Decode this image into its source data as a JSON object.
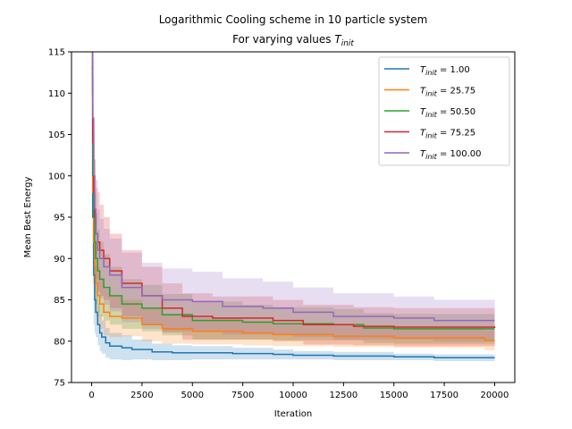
{
  "chart_data": {
    "type": "line",
    "title": "Logarithmic Cooling scheme in 10 particle system",
    "subtitle_prefix": "For varying values ",
    "subtitle_symbol": "T",
    "subtitle_subscript": "init",
    "xlabel": "Iteration",
    "ylabel": "Mean Best Energy",
    "xlim": [
      -1000,
      21000
    ],
    "ylim": [
      75,
      115
    ],
    "xticks": [
      0,
      2500,
      5000,
      7500,
      10000,
      12500,
      15000,
      17500,
      20000
    ],
    "xtick_labels": [
      "0",
      "2500",
      "5000",
      "7500",
      "10000",
      "12500",
      "15000",
      "17500",
      "20000"
    ],
    "yticks": [
      75,
      80,
      85,
      90,
      95,
      100,
      105,
      110,
      115
    ],
    "ytick_labels": [
      "75",
      "80",
      "85",
      "90",
      "95",
      "100",
      "105",
      "110",
      "115"
    ],
    "legend_position": "top-right",
    "series": [
      {
        "name": "T_init = 1.00",
        "legend_symbol": "T",
        "legend_sub": "init",
        "legend_value": " = 1.00",
        "color": "#1f77b4",
        "x": [
          0,
          50,
          100,
          150,
          200,
          300,
          400,
          500,
          700,
          900,
          1500,
          2000,
          3000,
          4000,
          5000,
          7000,
          9000,
          10000,
          12000,
          15000,
          17000,
          20000
        ],
        "y": [
          113,
          95,
          88,
          85,
          83.5,
          82,
          81,
          80.5,
          79.8,
          79.4,
          79.2,
          79.0,
          78.7,
          78.6,
          78.6,
          78.5,
          78.4,
          78.3,
          78.2,
          78.1,
          78.0,
          78.0
        ],
        "band": [
          3.5,
          8,
          6,
          4,
          3,
          2.5,
          2.2,
          2.0,
          1.8,
          1.6,
          1.5,
          1.2,
          1.0,
          0.9,
          0.8,
          0.7,
          0.6,
          0.5,
          0.5,
          0.4,
          0.4,
          0.4
        ]
      },
      {
        "name": "T_init = 25.75",
        "legend_symbol": "T",
        "legend_sub": "init",
        "legend_value": " = 25.75",
        "color": "#ff7f0e",
        "x": [
          0,
          50,
          100,
          150,
          200,
          300,
          400,
          600,
          900,
          1500,
          2500,
          3500,
          5000,
          7500,
          9000,
          12000,
          15000,
          18000,
          19500,
          20000
        ],
        "y": [
          113,
          98,
          92,
          89,
          87,
          85.5,
          84.5,
          83.5,
          83.0,
          82.8,
          82.0,
          81.5,
          81.2,
          81.0,
          80.8,
          80.6,
          80.4,
          80.4,
          80.1,
          80.1
        ],
        "band": [
          3,
          7,
          6,
          5,
          4,
          3.5,
          3,
          2.8,
          2.5,
          2.2,
          2.0,
          1.8,
          1.6,
          1.5,
          1.4,
          1.3,
          1.2,
          1.2,
          1.2,
          1.2
        ]
      },
      {
        "name": "T_init = 50.50",
        "legend_symbol": "T",
        "legend_sub": "init",
        "legend_value": " = 50.50",
        "color": "#2ca02c",
        "x": [
          0,
          50,
          100,
          150,
          200,
          300,
          400,
          600,
          900,
          1500,
          2500,
          3500,
          5000,
          7500,
          9000,
          12000,
          13500,
          15000,
          18000,
          20000
        ],
        "y": [
          113,
          100,
          95,
          92,
          90,
          88.5,
          87.5,
          86.5,
          85.5,
          84.5,
          84.0,
          83.2,
          82.5,
          82.3,
          82.1,
          82.0,
          81.6,
          81.5,
          81.5,
          81.5
        ],
        "band": [
          3,
          8,
          7,
          6,
          5.5,
          5,
          4.5,
          4,
          3.5,
          3,
          2.8,
          2.5,
          2.3,
          2.1,
          2.0,
          1.9,
          1.8,
          1.8,
          1.8,
          1.8
        ]
      },
      {
        "name": "T_init = 75.25",
        "legend_symbol": "T",
        "legend_sub": "init",
        "legend_value": " = 75.25",
        "color": "#d62728",
        "x": [
          0,
          50,
          100,
          150,
          200,
          300,
          400,
          600,
          900,
          1500,
          2500,
          3500,
          4500,
          6000,
          9000,
          10500,
          13000,
          15000,
          18500,
          20000
        ],
        "y": [
          115,
          104,
          98,
          95,
          93,
          92,
          91,
          90,
          88.5,
          87,
          85.5,
          84.0,
          83.0,
          82.8,
          82.5,
          82.0,
          81.8,
          81.7,
          81.7,
          81.6
        ],
        "band": [
          3,
          8,
          7.5,
          7,
          6.5,
          6,
          5.5,
          5,
          4.5,
          4,
          3.5,
          3,
          2.8,
          2.6,
          2.5,
          2.4,
          2.3,
          2.3,
          2.3,
          2.3
        ]
      },
      {
        "name": "T_init = 100.00",
        "legend_symbol": "T",
        "legend_sub": "init",
        "legend_value": " = 100.00",
        "color": "#9467bd",
        "x": [
          0,
          50,
          100,
          150,
          200,
          300,
          400,
          600,
          900,
          1500,
          2500,
          3500,
          5000,
          6500,
          8500,
          10000,
          12000,
          15000,
          17000,
          20000
        ],
        "y": [
          115,
          107,
          100,
          96,
          93,
          91,
          90,
          89,
          88,
          86.5,
          85.5,
          85.0,
          84.8,
          84.2,
          84.0,
          83.5,
          83.0,
          82.8,
          82.5,
          82.5
        ],
        "band": [
          3,
          7,
          6.5,
          6,
          5.5,
          5,
          4.8,
          4.6,
          4.4,
          4.2,
          4.0,
          3.8,
          3.6,
          3.4,
          3.2,
          3.0,
          2.8,
          2.6,
          2.5,
          2.5
        ]
      }
    ]
  }
}
